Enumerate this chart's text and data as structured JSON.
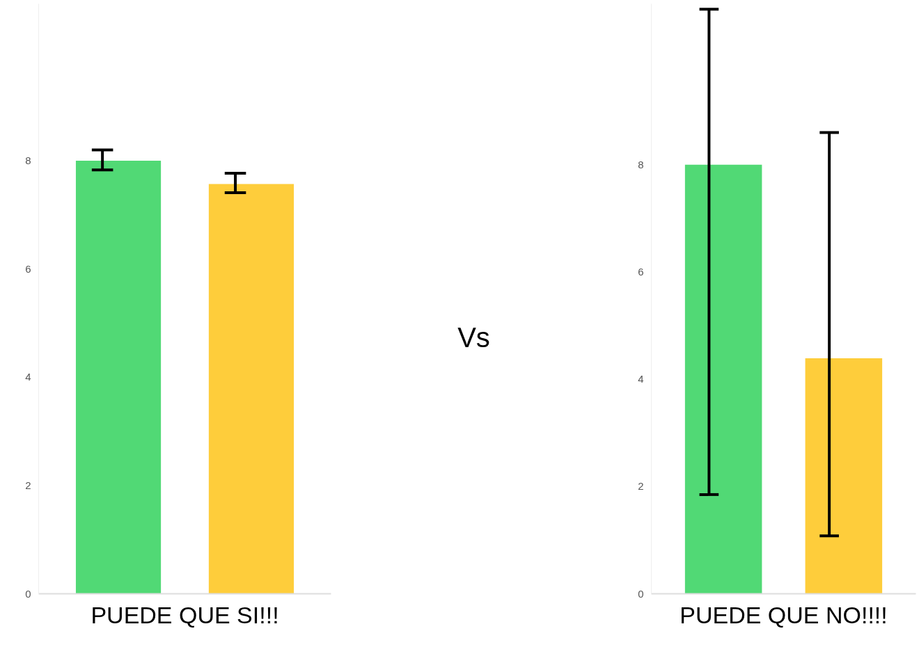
{
  "chart_data": [
    {
      "type": "bar",
      "categories": [
        null,
        null
      ],
      "xlabel": "PUEDE QUE SI!!!",
      "series": [
        {
          "colors": [
            "#51d975",
            "#fecd3b"
          ],
          "values": [
            8.0,
            7.57
          ],
          "errors": [
            [
              7.83,
              8.2
            ],
            [
              7.41,
              7.77
            ]
          ]
        }
      ],
      "ylim": [
        0,
        10.9
      ],
      "yticks": [
        0,
        2,
        4,
        6,
        8
      ],
      "grid": false
    },
    {
      "type": "other",
      "annotations": [
        "Vs"
      ]
    },
    {
      "type": "bar",
      "categories": [
        null,
        null
      ],
      "xlabel": "PUEDE QUE NO!!!!",
      "series": [
        {
          "colors": [
            "#51d975",
            "#fecd3b"
          ],
          "values": [
            8.0,
            4.39
          ],
          "errors": [
            [
              1.85,
              10.9
            ],
            [
              1.08,
              8.6
            ]
          ]
        }
      ],
      "ylim": [
        0,
        11.0
      ],
      "yticks": [
        0,
        2,
        4,
        6,
        8
      ],
      "grid": false
    }
  ]
}
